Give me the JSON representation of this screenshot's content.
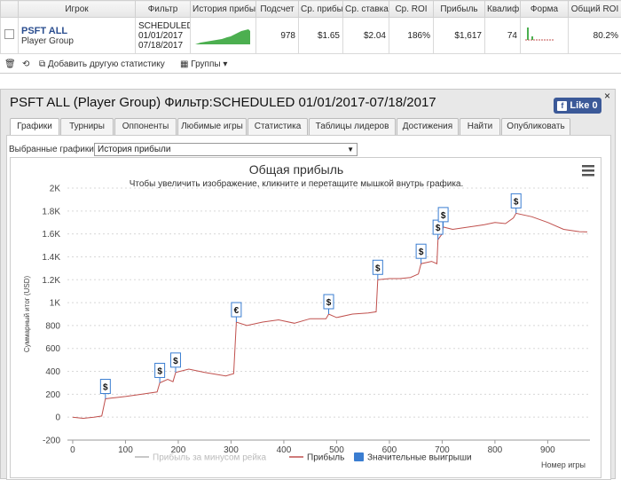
{
  "header": {
    "columns": [
      "Игрок",
      "Фильтр",
      "История прибы",
      "Подсчет",
      "Ср. прибы",
      "Ср. ставка",
      "Ср. ROI",
      "Прибыль",
      "Квалиф",
      "Форма",
      "Общий ROI"
    ]
  },
  "row": {
    "player": "PSFT ALL",
    "group": "Player Group",
    "filter_line1": "SCHEDULED",
    "filter_line2": "01/01/2017",
    "filter_line3": "07/18/2017",
    "count": "978",
    "avg_profit": "$1.65",
    "avg_stake": "$2.04",
    "avg_roi": "186%",
    "profit": "$1,617",
    "qualify": "74",
    "total_roi": "80.2%"
  },
  "toolbar": {
    "add_stats": "Добавить другую статистику",
    "groups": "Группы"
  },
  "panel": {
    "title": "PSFT ALL (Player Group) Фильтр:SCHEDULED 01/01/2017-07/18/2017",
    "like_label": "Like 0",
    "close": "×",
    "tabs": [
      "Графики",
      "Турниры",
      "Оппоненты",
      "Любимые игры",
      "Статистика",
      "Таблицы лидеров",
      "Достижения",
      "Найти",
      "Опубликовать"
    ],
    "selected_charts_label": "Выбранные графики:",
    "selected_chart": "История прибыли"
  },
  "colors": {
    "profit_line": "#c0504d",
    "rake_line": "#c8c8c8",
    "big_wins": "#3a7dd1",
    "sparkline": "#4caf50"
  },
  "chart_data": {
    "type": "line",
    "title": "Общая прибыль",
    "subtitle": "Чтобы увеличить изображение, кликните и перетащите мышкой внутрь графика.",
    "xlabel": "Номер игры",
    "ylabel": "Суммарный итог (USD)",
    "xlim": [
      -10,
      980
    ],
    "ylim": [
      -200,
      2000
    ],
    "x_ticks": [
      0,
      100,
      200,
      300,
      400,
      500,
      600,
      700,
      800,
      900
    ],
    "y_ticks": [
      -200,
      0,
      200,
      400,
      600,
      800,
      1000,
      1200,
      1400,
      1600,
      1800,
      2000
    ],
    "y_tick_labels": [
      "-200",
      "0",
      "200",
      "400",
      "600",
      "800",
      "1K",
      "1.2K",
      "1.4K",
      "1.6K",
      "1.8K",
      "2K"
    ],
    "legend": [
      "Прибыль за минусом рейка",
      "Прибыль",
      "Значительные выигрыши"
    ],
    "series": [
      {
        "name": "Прибыль",
        "x": [
          0,
          20,
          40,
          55,
          62,
          80,
          100,
          130,
          160,
          165,
          180,
          190,
          195,
          220,
          250,
          290,
          305,
          310,
          330,
          360,
          390,
          420,
          450,
          480,
          485,
          500,
          530,
          560,
          575,
          578,
          600,
          620,
          640,
          655,
          660,
          680,
          690,
          692,
          700,
          702,
          720,
          750,
          780,
          800,
          820,
          835,
          840,
          870,
          900,
          930,
          960,
          975
        ],
        "y": [
          0,
          -10,
          0,
          10,
          160,
          170,
          180,
          200,
          220,
          300,
          330,
          310,
          390,
          420,
          390,
          360,
          380,
          830,
          800,
          830,
          850,
          820,
          860,
          860,
          900,
          870,
          900,
          910,
          920,
          1200,
          1210,
          1210,
          1220,
          1250,
          1340,
          1360,
          1340,
          1550,
          1600,
          1660,
          1640,
          1660,
          1680,
          1700,
          1690,
          1740,
          1780,
          1750,
          1700,
          1640,
          1620,
          1617
        ]
      }
    ],
    "big_wins": [
      {
        "x": 62,
        "y": 160,
        "label": "$"
      },
      {
        "x": 165,
        "y": 300,
        "label": "$"
      },
      {
        "x": 195,
        "y": 390,
        "label": "$"
      },
      {
        "x": 310,
        "y": 830,
        "label": "€"
      },
      {
        "x": 485,
        "y": 900,
        "label": "$"
      },
      {
        "x": 578,
        "y": 1200,
        "label": "$"
      },
      {
        "x": 660,
        "y": 1340,
        "label": "$"
      },
      {
        "x": 692,
        "y": 1550,
        "label": "$"
      },
      {
        "x": 702,
        "y": 1660,
        "label": "$"
      },
      {
        "x": 840,
        "y": 1780,
        "label": "$"
      }
    ]
  }
}
